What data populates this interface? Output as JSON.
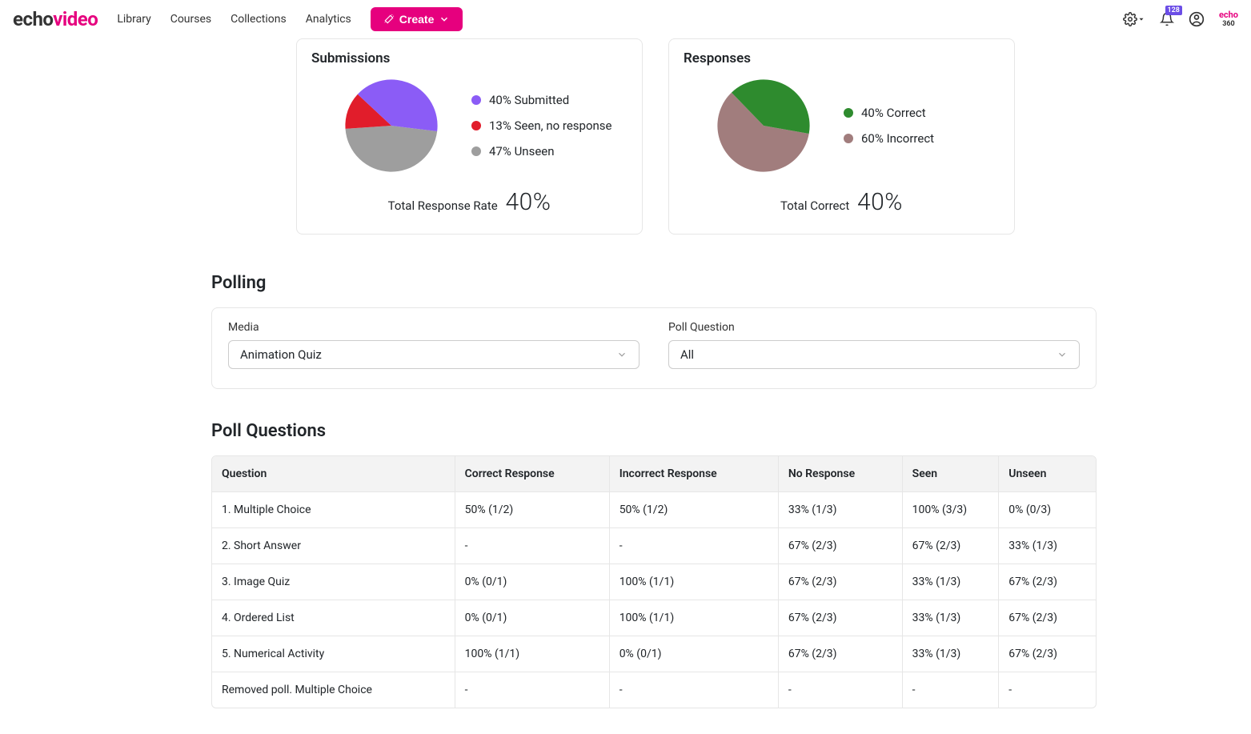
{
  "nav": {
    "logo_echo": "echo",
    "logo_video": "video",
    "links": [
      "Library",
      "Courses",
      "Collections",
      "Analytics"
    ],
    "create": "Create",
    "notif_count": "128",
    "small_echo": "echo",
    "small_360": "360"
  },
  "submissions": {
    "title": "Submissions",
    "type": "pie",
    "slices": [
      {
        "label": "40% Submitted",
        "value": 40,
        "color": "#8b5cf6"
      },
      {
        "label": "13% Seen, no response",
        "value": 13,
        "color": "#e11d2b"
      },
      {
        "label": "47% Unseen",
        "value": 47,
        "color": "#9e9e9e"
      }
    ],
    "total_label": "Total Response Rate",
    "total_value": "40%"
  },
  "responses": {
    "title": "Responses",
    "type": "pie",
    "slices": [
      {
        "label": "40% Correct",
        "value": 40,
        "color": "#2e8b2e"
      },
      {
        "label": "60% Incorrect",
        "value": 60,
        "color": "#a17d7d"
      }
    ],
    "total_label": "Total Correct",
    "total_value": "40%"
  },
  "polling": {
    "title": "Polling",
    "media_label": "Media",
    "media_value": "Animation Quiz",
    "question_label": "Poll Question",
    "question_value": "All"
  },
  "poll_questions": {
    "title": "Poll Questions",
    "columns": [
      "Question",
      "Correct Response",
      "Incorrect Response",
      "No Response",
      "Seen",
      "Unseen"
    ],
    "rows": [
      [
        "1. Multiple Choice",
        "50% (1/2)",
        "50% (1/2)",
        "33% (1/3)",
        "100% (3/3)",
        "0% (0/3)"
      ],
      [
        "2. Short Answer",
        "-",
        "-",
        "67% (2/3)",
        "67% (2/3)",
        "33% (1/3)"
      ],
      [
        "3. Image Quiz",
        "0% (0/1)",
        "100% (1/1)",
        "67% (2/3)",
        "33% (1/3)",
        "67% (2/3)"
      ],
      [
        "4. Ordered List",
        "0% (0/1)",
        "100% (1/1)",
        "67% (2/3)",
        "33% (1/3)",
        "67% (2/3)"
      ],
      [
        "5. Numerical Activity",
        "100% (1/1)",
        "0% (0/1)",
        "67% (2/3)",
        "33% (1/3)",
        "67% (2/3)"
      ],
      [
        "Removed poll. Multiple Choice",
        "-",
        "-",
        "-",
        "-",
        "-"
      ]
    ]
  }
}
